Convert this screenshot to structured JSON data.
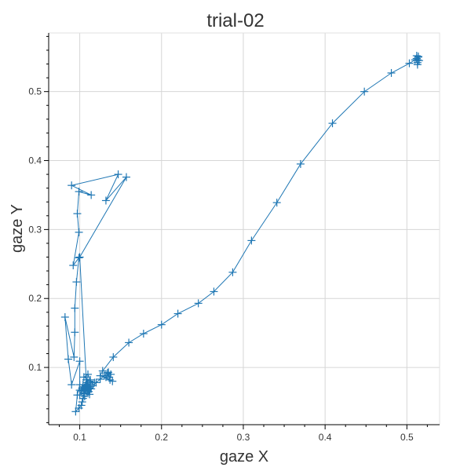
{
  "chart_data": {
    "type": "line",
    "title": "trial-02",
    "xlabel": "gaze X",
    "ylabel": "gaze Y",
    "xlim": [
      0.062,
      0.54
    ],
    "ylim": [
      0.017,
      0.585
    ],
    "xticks": [
      0.1,
      0.2,
      0.3,
      0.4,
      0.5
    ],
    "xtick_labels": [
      "0.1",
      "0.2",
      "0.3",
      "0.4",
      "0.5"
    ],
    "yticks": [
      0.1,
      0.2,
      0.3,
      0.4,
      0.5
    ],
    "ytick_labels": [
      "0.1",
      "0.2",
      "0.3",
      "0.4",
      "0.5"
    ],
    "grid": true,
    "marker": "plus",
    "color": "#1f77b4",
    "series": [
      {
        "name": "",
        "x": [
          0.1,
          0.1,
          0.102,
          0.103,
          0.105,
          0.104,
          0.107,
          0.106,
          0.108,
          0.104,
          0.109,
          0.11,
          0.106,
          0.108,
          0.112,
          0.11,
          0.107,
          0.105,
          0.109,
          0.113,
          0.111,
          0.108,
          0.114,
          0.112,
          0.106,
          0.104,
          0.103,
          0.102,
          0.099,
          0.095,
          0.097,
          0.1,
          0.1,
          0.09,
          0.086,
          0.082,
          0.093,
          0.094,
          0.094,
          0.096,
          0.099,
          0.092,
          0.099,
          0.097,
          0.099,
          0.114,
          0.09,
          0.147,
          0.132,
          0.157,
          0.1,
          0.108,
          0.112,
          0.118,
          0.105,
          0.11,
          0.113,
          0.116,
          0.12,
          0.125,
          0.13,
          0.134,
          0.136,
          0.138,
          0.135,
          0.132,
          0.137,
          0.14,
          0.125,
          0.128,
          0.141,
          0.16,
          0.178,
          0.2,
          0.22,
          0.245,
          0.264,
          0.287,
          0.31,
          0.341,
          0.37,
          0.409,
          0.448,
          0.481,
          0.503,
          0.51,
          0.512,
          0.513,
          0.514,
          0.512,
          0.515,
          0.513,
          0.512,
          0.514,
          0.513
        ],
        "y": [
          0.067,
          0.06,
          0.066,
          0.07,
          0.068,
          0.072,
          0.069,
          0.065,
          0.071,
          0.075,
          0.066,
          0.068,
          0.062,
          0.073,
          0.07,
          0.076,
          0.074,
          0.063,
          0.078,
          0.072,
          0.065,
          0.082,
          0.069,
          0.061,
          0.058,
          0.055,
          0.05,
          0.045,
          0.041,
          0.036,
          0.06,
          0.075,
          0.109,
          0.075,
          0.112,
          0.173,
          0.115,
          0.151,
          0.186,
          0.224,
          0.259,
          0.248,
          0.296,
          0.323,
          0.355,
          0.35,
          0.364,
          0.38,
          0.342,
          0.376,
          0.26,
          0.082,
          0.08,
          0.078,
          0.086,
          0.09,
          0.082,
          0.074,
          0.078,
          0.083,
          0.088,
          0.092,
          0.086,
          0.09,
          0.093,
          0.086,
          0.082,
          0.08,
          0.088,
          0.095,
          0.115,
          0.136,
          0.149,
          0.162,
          0.178,
          0.193,
          0.21,
          0.238,
          0.284,
          0.339,
          0.395,
          0.454,
          0.5,
          0.527,
          0.541,
          0.546,
          0.548,
          0.542,
          0.55,
          0.552,
          0.545,
          0.539,
          0.548,
          0.551,
          0.546
        ]
      }
    ]
  }
}
